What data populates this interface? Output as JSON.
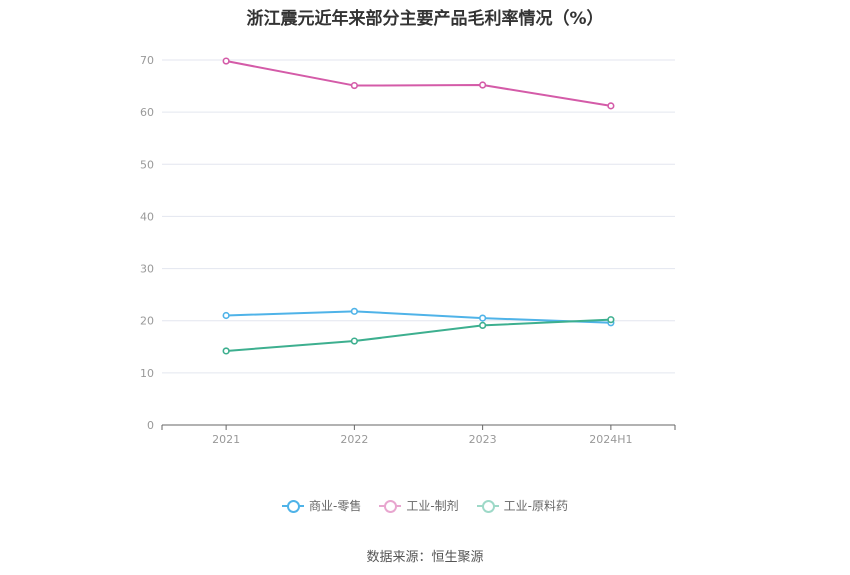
{
  "chart_data": {
    "type": "line",
    "title": "浙江震元近年来部分主要产品毛利率情况（%）",
    "categories": [
      "2021",
      "2022",
      "2023",
      "2024H1"
    ],
    "ylim": [
      0,
      70
    ],
    "yticks": [
      "0",
      "10",
      "20",
      "30",
      "40",
      "50",
      "60",
      "70"
    ],
    "grid": true,
    "legend_position": "bottom",
    "series": [
      {
        "name": "商业-零售",
        "color": "#4fb3e8",
        "values": [
          21.0,
          21.8,
          20.5,
          19.6
        ]
      },
      {
        "name": "工业-制剂",
        "color": "#d45ba8",
        "values": [
          69.8,
          65.1,
          65.2,
          61.2
        ]
      },
      {
        "name": "工业-原料药",
        "color": "#3daf8f",
        "values": [
          14.2,
          16.1,
          19.1,
          20.2
        ]
      }
    ]
  },
  "source": "数据来源：恒生聚源"
}
